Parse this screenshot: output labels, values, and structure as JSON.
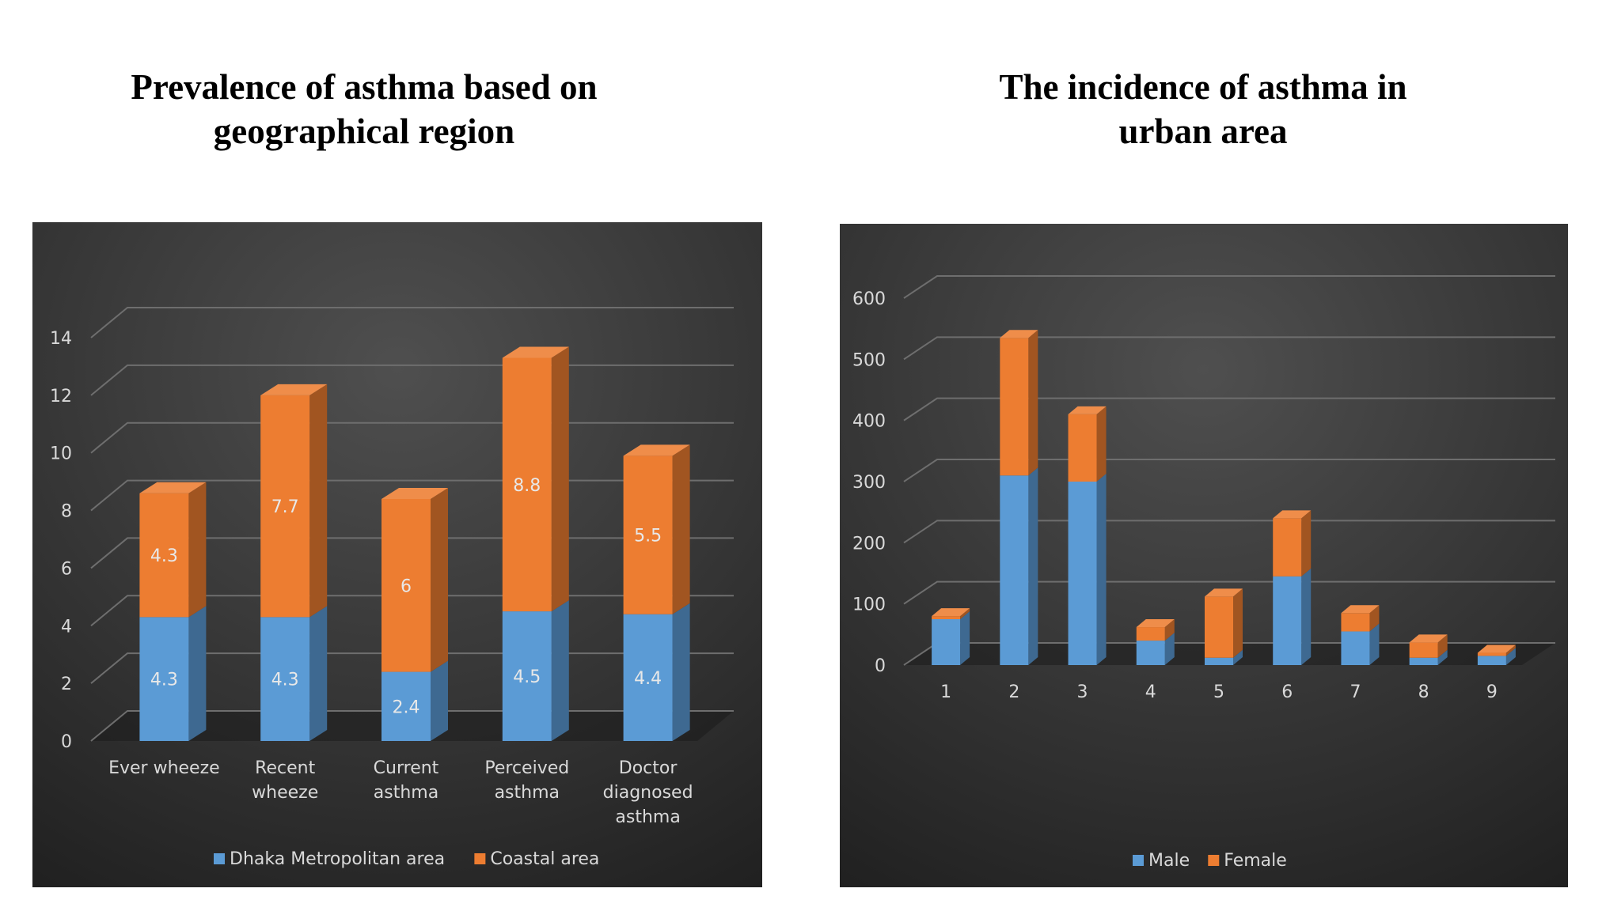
{
  "titles": {
    "left": "Prevalence of asthma based on\ngeographical region",
    "right": "The incidence of asthma in\nurban area"
  },
  "colors": {
    "panel_background": "#3a3a3a",
    "series_blue": "#5b9bd5",
    "series_orange": "#ed7d31",
    "text_light": "#d9d9d9"
  },
  "chart_data": [
    {
      "type": "bar",
      "stacked": true,
      "three_d": true,
      "title": "Prevalence of asthma based on geographical region",
      "categories": [
        [
          "Ever wheeze"
        ],
        [
          "Recent",
          "wheeze"
        ],
        [
          "Current",
          "asthma"
        ],
        [
          "Perceived",
          "asthma"
        ],
        [
          "Doctor",
          "diagnosed",
          "asthma"
        ]
      ],
      "series": [
        {
          "name": "Dhaka Metropolitan area",
          "color": "#5b9bd5",
          "values": [
            4.3,
            4.3,
            2.4,
            4.5,
            4.4
          ],
          "labels": [
            "4.3",
            "4.3",
            "2.4",
            "4.5",
            "4.4"
          ]
        },
        {
          "name": "Coastal area",
          "color": "#ed7d31",
          "values": [
            4.3,
            7.7,
            6,
            8.8,
            5.5
          ],
          "labels": [
            "4.3",
            "7.7",
            "6",
            "8.8",
            "5.5"
          ]
        }
      ],
      "y_ticks": [
        "0",
        "2",
        "4",
        "6",
        "8",
        "10",
        "12",
        "14"
      ],
      "ylim": [
        0,
        14
      ],
      "grid": true,
      "legend_position": "bottom"
    },
    {
      "type": "bar",
      "stacked": true,
      "three_d": true,
      "title": "The incidence of asthma in urban area",
      "categories": [
        [
          "1"
        ],
        [
          "2"
        ],
        [
          "3"
        ],
        [
          "4"
        ],
        [
          "5"
        ],
        [
          "6"
        ],
        [
          "7"
        ],
        [
          "8"
        ],
        [
          "9"
        ]
      ],
      "series": [
        {
          "name": "Male",
          "color": "#5b9bd5",
          "values": [
            75,
            310,
            300,
            40,
            12,
            145,
            55,
            12,
            15
          ]
        },
        {
          "name": "Female",
          "color": "#ed7d31",
          "values": [
            5,
            225,
            110,
            22,
            100,
            95,
            30,
            25,
            5
          ]
        }
      ],
      "y_ticks": [
        "0",
        "100",
        "200",
        "300",
        "400",
        "500",
        "600"
      ],
      "ylim": [
        0,
        600
      ],
      "grid": true,
      "legend_position": "bottom"
    }
  ]
}
